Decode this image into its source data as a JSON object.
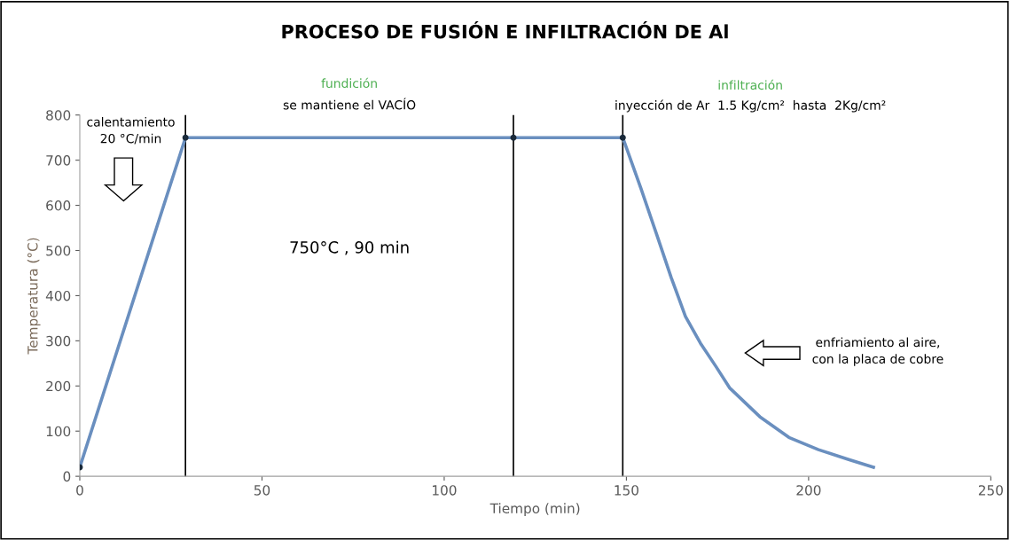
{
  "chart_data": {
    "type": "line",
    "title": "PROCESO DE FUSIÓN E INFILTRACIÓN DE Al",
    "xlabel": "Tiempo (min)",
    "ylabel": "Temperatura (°C)",
    "xlim": [
      0,
      250
    ],
    "xticks": [
      0,
      50,
      100,
      150,
      200,
      250
    ],
    "ylim": [
      0,
      800
    ],
    "yticks": [
      0,
      100,
      200,
      300,
      400,
      500,
      600,
      700,
      800
    ],
    "grid": false,
    "line_style": "solid",
    "series": [
      {
        "color": "#6a8fbf",
        "marker": "circle",
        "x": [
          0,
          29,
          119,
          149
        ],
        "values": [
          20,
          750,
          750,
          750
        ]
      },
      {
        "color": "#6a8fbf",
        "marker": "none",
        "x": [
          149,
          154,
          158.2,
          162.3,
          166.2,
          170.3,
          174.5,
          178.3,
          186.6,
          194.6,
          202.7,
          211,
          217.8
        ],
        "values": [
          750,
          637,
          538,
          440,
          354,
          295,
          244,
          196,
          132,
          86,
          59,
          37,
          20
        ]
      }
    ],
    "ref_lines": [
      {
        "axis": "x",
        "value": 29,
        "color": "#000000"
      },
      {
        "axis": "x",
        "value": 119,
        "color": "#000000"
      },
      {
        "axis": "x",
        "value": 149,
        "color": "#000000"
      }
    ],
    "annotations": [
      "fundición",
      "se mantiene el VACÍO",
      "infiltración",
      "inyección de Ar  1.5 Kg/cm²  hasta  2Kg/cm²",
      "calentamiento\n20 °C/min",
      "750°C , 90 min",
      "enfriamiento al aire,\ncon la placa de cobre"
    ]
  }
}
